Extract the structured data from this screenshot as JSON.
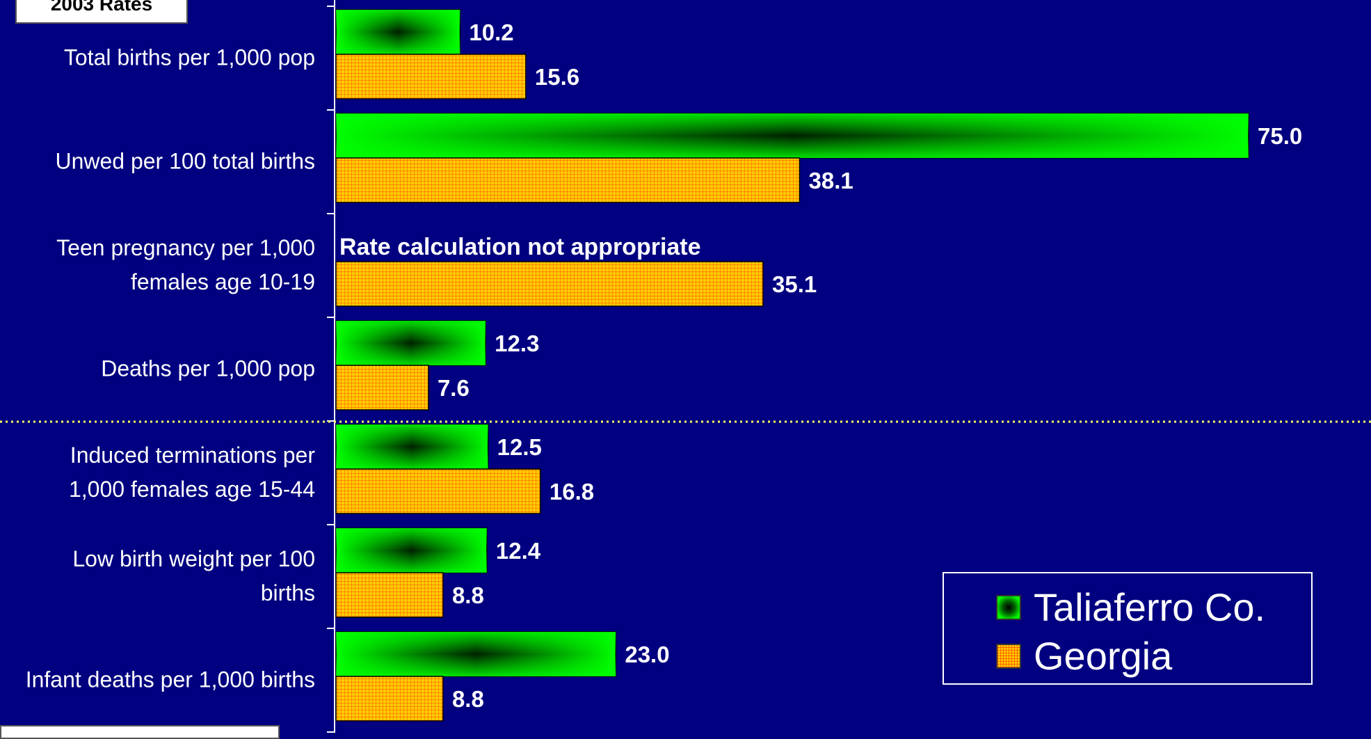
{
  "title_box": "2003 Rates",
  "chart_data": {
    "type": "bar",
    "orientation": "horizontal",
    "title": "2003 Rates",
    "categories": [
      "Total births per 1,000 pop",
      "Unwed per 100 total births",
      "Teen pregnancy per 1,000 females age 10-19",
      "Deaths per 1,000 pop",
      "Induced terminations per 1,000 females age 15-44",
      "Low birth weight per 100 births",
      "Infant deaths per 1,000 births"
    ],
    "category_lines": [
      [
        "Total births per 1,000 pop"
      ],
      [
        "Unwed per 100 total births"
      ],
      [
        "Teen pregnancy per 1,000",
        "females age 10-19"
      ],
      [
        "Deaths per 1,000 pop"
      ],
      [
        "Induced terminations per",
        "1,000 females age 15-44"
      ],
      [
        "Low birth weight per 100",
        "births"
      ],
      [
        "Infant deaths per 1,000 births"
      ]
    ],
    "series": [
      {
        "name": "Taliaferro Co.",
        "values": [
          10.2,
          75.0,
          null,
          12.3,
          12.5,
          12.4,
          23.0
        ],
        "labels": [
          "10.2",
          "75.0",
          "",
          "12.3",
          "12.5",
          "12.4",
          "23.0"
        ],
        "color": "#00ff00"
      },
      {
        "name": "Georgia",
        "values": [
          15.6,
          38.1,
          35.1,
          7.6,
          16.8,
          8.8,
          8.8
        ],
        "labels": [
          "15.6",
          "38.1",
          "35.1",
          "7.6",
          "16.8",
          "8.8",
          "8.8"
        ],
        "color": "#ffcc00"
      }
    ],
    "annotations": [
      "Rate calculation not appropriate"
    ],
    "xlim": [
      0,
      80
    ],
    "legend_position": "bottom-right",
    "grid": false
  },
  "colors": {
    "background": "#000080",
    "taliaferro": "#00ff00",
    "georgia": "#ffcc00",
    "georgia_grid": "#ff6600",
    "separator": "#ffff66"
  }
}
